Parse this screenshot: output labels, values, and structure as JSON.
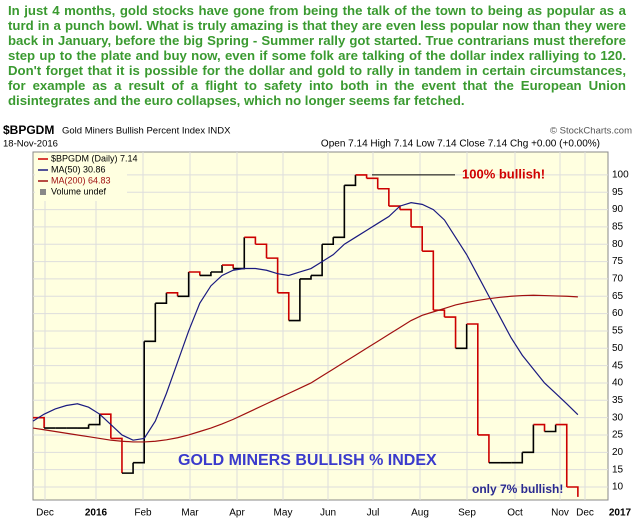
{
  "commentary": "In just 4 months, gold stocks have gone from being the talk of the town to being as popular as a turd in a punch bowl. What is truly amazing is that they are even less popular now than they were back in January, before the big Spring - Summer rally got started. True contrarians must therefore step up to the plate and buy now, even if some folk are talking of the dollar index ralliying to 120. Don't forget that it is possible for the dollar and gold to rally in tandem in certain circumstances, for example as a result of a flight to safety into both in the event that the European Union disintegrates and the euro collapses, which no longer seems far fetched.",
  "chart_data": {
    "type": "line",
    "symbol": "$BPGDM",
    "title": "Gold Miners Bullish Percent Index INDX",
    "source": "© StockCharts.com",
    "date": "18-Nov-2016",
    "quote": "Open 7.14 High 7.14 Low 7.14 Close 7.14 Chg +0.00 (+0.00%)",
    "x_labels": [
      "Dec",
      "2016",
      "Feb",
      "Mar",
      "Apr",
      "May",
      "Jun",
      "Jul",
      "Aug",
      "Sep",
      "Oct",
      "Nov",
      "Dec",
      "2017"
    ],
    "series": [
      {
        "name": "$BPGDM (Daily) 7.14",
        "color": "#000000",
        "down_color": "#cc0000",
        "values": [
          30,
          27,
          27,
          27,
          27,
          28,
          31,
          24,
          14,
          17,
          52,
          63,
          66,
          65,
          72,
          71,
          72,
          74,
          73,
          82,
          80,
          76,
          66,
          58,
          70,
          71,
          80,
          82,
          97,
          100,
          99,
          96,
          91,
          90,
          85,
          78,
          61,
          59,
          50,
          57,
          25,
          17,
          17,
          17,
          20,
          28,
          26,
          28,
          10,
          7.14
        ]
      },
      {
        "name": "MA(50) 30.86",
        "color": "#1a1a80",
        "values": [
          29,
          31,
          32.5,
          33.5,
          34,
          33,
          31,
          28,
          25,
          23.5,
          24,
          29,
          37,
          46,
          55,
          63,
          68,
          71,
          72.5,
          73,
          73,
          72.5,
          71.5,
          71,
          72,
          73,
          75,
          77,
          80,
          82,
          84,
          86,
          88,
          91,
          92,
          91.5,
          90,
          87,
          82,
          77,
          71,
          65,
          59,
          53,
          48,
          44,
          40,
          37,
          34,
          30.86
        ]
      },
      {
        "name": "MA(200) 64.83",
        "color": "#a01010",
        "values": [
          27,
          26.5,
          26,
          25.5,
          25,
          24.5,
          24,
          23.5,
          23.2,
          23,
          23,
          23.2,
          23.6,
          24.2,
          25,
          26,
          27,
          28.2,
          29.5,
          31,
          32.5,
          34,
          35.5,
          37,
          38.5,
          40,
          42,
          44,
          46,
          48,
          50,
          52,
          54,
          56,
          58,
          59.5,
          60.5,
          61.5,
          62.5,
          63.2,
          63.8,
          64.3,
          64.7,
          65,
          65.2,
          65.3,
          65.2,
          65.1,
          65,
          64.83
        ]
      }
    ],
    "volume_legend": "Volume undef",
    "ylim": [
      6.25,
      106.6
    ],
    "yticks": [
      10,
      15,
      20,
      25,
      30,
      35,
      40,
      45,
      50,
      55,
      60,
      65,
      70,
      75,
      80,
      85,
      90,
      95,
      100
    ],
    "grid": true,
    "annotations": [
      "100% bullish!",
      "GOLD MINERS BULLISH % INDEX",
      "only 7% bullish!"
    ]
  }
}
